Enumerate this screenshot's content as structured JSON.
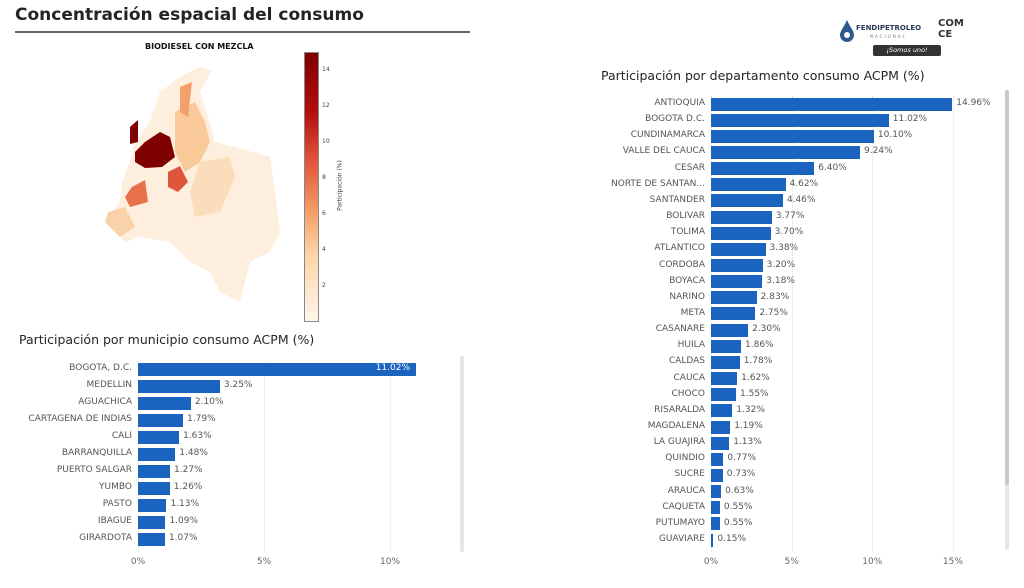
{
  "header": {
    "title": "Concentración espacial del consumo"
  },
  "logos": {
    "fendipetroleo": "FENDIPETROLEO",
    "fendipetroleo_sub": "NACIONAL",
    "comce": "COM CE",
    "slogan": "¡Somos uno!"
  },
  "map": {
    "title": "BIODIESEL CON MEZCLA",
    "colorbar_label": "Participación (%)",
    "colorbar_ticks": [
      "14",
      "12",
      "10",
      "8",
      "6",
      "4",
      "2"
    ],
    "colorbar_range": [
      0,
      15
    ],
    "colors": {
      "low": "#fff5eb",
      "mid": "#f5a06a",
      "high": "#7f0000"
    }
  },
  "municipio_chart": {
    "title": "Participación por municipio consumo ACPM (%)",
    "type": "bar",
    "orientation": "horizontal",
    "categories": [
      "BOGOTA, D.C.",
      "MEDELLIN",
      "AGUACHICA",
      "CARTAGENA DE INDIAS",
      "CALI",
      "BARRANQUILLA",
      "PUERTO SALGAR",
      "YUMBO",
      "PASTO",
      "IBAGUE",
      "GIRARDOTA"
    ],
    "values": [
      11.02,
      3.25,
      2.1,
      1.79,
      1.63,
      1.48,
      1.27,
      1.26,
      1.13,
      1.09,
      1.07
    ],
    "labels": [
      "11.02%",
      "3.25%",
      "2.10%",
      "1.79%",
      "1.63%",
      "1.48%",
      "1.27%",
      "1.26%",
      "1.13%",
      "1.09%",
      "1.07%"
    ],
    "xlim": [
      0,
      11.3
    ],
    "ticks": [
      "0%",
      "5%",
      "10%"
    ],
    "tick_values": [
      0,
      5,
      10
    ],
    "bar_color": "#1a64c0"
  },
  "departamento_chart": {
    "title": "Participación por departamento consumo ACPM (%)",
    "type": "bar",
    "orientation": "horizontal",
    "categories": [
      "ANTIOQUIA",
      "BOGOTA D.C.",
      "CUNDINAMARCA",
      "VALLE DEL CAUCA",
      "CESAR",
      "NORTE DE SANTAN...",
      "SANTANDER",
      "BOLIVAR",
      "TOLIMA",
      "ATLANTICO",
      "CORDOBA",
      "BOYACA",
      "NARIÑO",
      "META",
      "CASANARE",
      "HUILA",
      "CALDAS",
      "CAUCA",
      "CHOCO",
      "RISARALDA",
      "MAGDALENA",
      "LA GUAJIRA",
      "QUINDIO",
      "SUCRE",
      "ARAUCA",
      "CAQUETA",
      "PUTUMAYO",
      "GUAVIARE"
    ],
    "values": [
      14.96,
      11.02,
      10.1,
      9.24,
      6.4,
      4.62,
      4.46,
      3.77,
      3.7,
      3.38,
      3.2,
      3.18,
      2.83,
      2.75,
      2.3,
      1.86,
      1.78,
      1.62,
      1.55,
      1.32,
      1.19,
      1.13,
      0.77,
      0.73,
      0.63,
      0.55,
      0.55,
      0.15
    ],
    "labels": [
      "14.96%",
      "11.02%",
      "10.10%",
      "9.24%",
      "6.40%",
      "4.62%",
      "4.46%",
      "3.77%",
      "3.70%",
      "3.38%",
      "3.20%",
      "3.18%",
      "2.83%",
      "2.75%",
      "2.30%",
      "1.86%",
      "1.78%",
      "1.62%",
      "1.55%",
      "1.32%",
      "1.19%",
      "1.13%",
      "0.77%",
      "0.73%",
      "0.63%",
      "0.55%",
      "0.55%",
      "0.15%"
    ],
    "xlim": [
      0,
      15.5
    ],
    "ticks": [
      "0%",
      "5%",
      "10%",
      "15%"
    ],
    "tick_values": [
      0,
      5,
      10,
      15
    ],
    "bar_color": "#1a64c0"
  }
}
